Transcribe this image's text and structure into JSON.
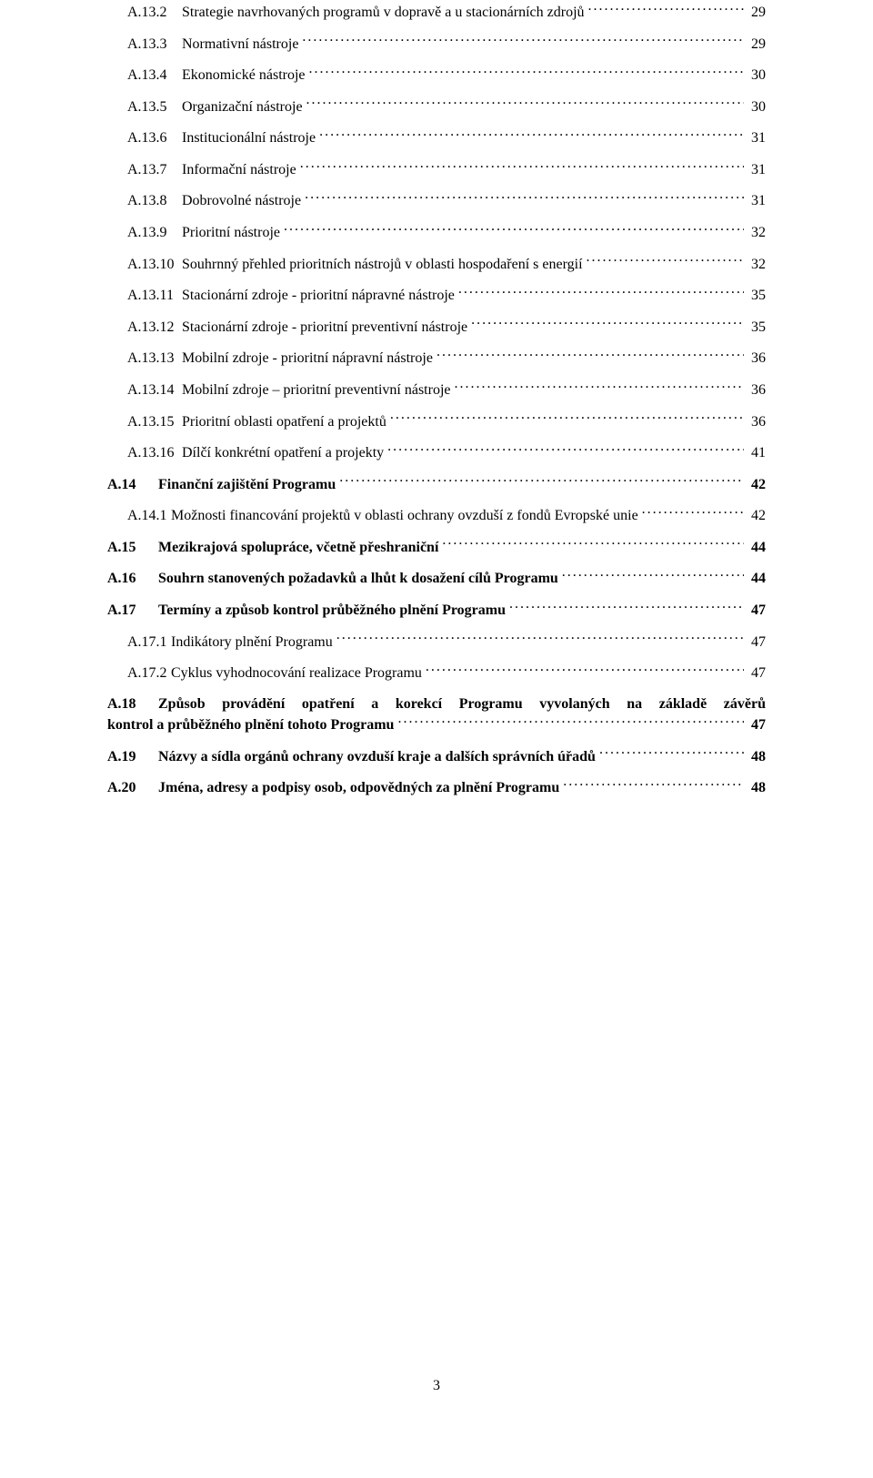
{
  "page_number": "3",
  "toc": [
    {
      "level": "sub2",
      "num": "A.13.2",
      "label": "Strategie navrhovaných programů v dopravě a u stacionárních zdrojů",
      "page": "29"
    },
    {
      "level": "sub2",
      "num": "A.13.3",
      "label": "Normativní nástroje",
      "page": "29"
    },
    {
      "level": "sub2",
      "num": "A.13.4",
      "label": "Ekonomické nástroje",
      "page": "30"
    },
    {
      "level": "sub2",
      "num": "A.13.5",
      "label": "Organizační nástroje",
      "page": "30"
    },
    {
      "level": "sub2",
      "num": "A.13.6",
      "label": "Institucionální nástroje",
      "page": "31"
    },
    {
      "level": "sub2",
      "num": "A.13.7",
      "label": "Informační nástroje",
      "page": "31"
    },
    {
      "level": "sub2",
      "num": "A.13.8",
      "label": "Dobrovolné nástroje",
      "page": "31"
    },
    {
      "level": "sub2",
      "num": "A.13.9",
      "label": "Prioritní nástroje",
      "page": "32"
    },
    {
      "level": "sub2",
      "num": "A.13.10",
      "label": "Souhrnný přehled prioritních nástrojů v oblasti hospodaření s energií",
      "page": "32"
    },
    {
      "level": "sub2",
      "num": "A.13.11",
      "label": "Stacionární zdroje - prioritní nápravné nástroje",
      "page": "35"
    },
    {
      "level": "sub2",
      "num": "A.13.12",
      "label": "Stacionární zdroje - prioritní preventivní nástroje",
      "page": "35"
    },
    {
      "level": "sub2",
      "num": "A.13.13",
      "label": "Mobilní zdroje - prioritní nápravní nástroje",
      "page": "36"
    },
    {
      "level": "sub2",
      "num": "A.13.14",
      "label": "Mobilní zdroje – prioritní preventivní nástroje",
      "page": "36"
    },
    {
      "level": "sub2",
      "num": "A.13.15",
      "label": "Prioritní oblasti opatření a projektů",
      "page": "36"
    },
    {
      "level": "sub2",
      "num": "A.13.16",
      "label": "Dílčí konkrétní opatření a projekty",
      "page": "41"
    },
    {
      "level": "main",
      "num": "A.14",
      "label": "Finanční zajištění Programu",
      "page": "42"
    },
    {
      "level": "sub",
      "num": "A.14.1",
      "label": "Možnosti financování projektů v oblasti ochrany ovzduší z fondů Evropské unie",
      "page": "42"
    },
    {
      "level": "main",
      "num": "A.15",
      "label": "Mezikrajová spolupráce, včetně přeshraniční",
      "page": "44"
    },
    {
      "level": "main",
      "num": "A.16",
      "label": "Souhrn stanovených požadavků a lhůt k dosažení cílů Programu",
      "page": "44"
    },
    {
      "level": "main",
      "num": "A.17",
      "label": "Termíny a způsob kontrol průběžného plnění Programu",
      "page": "47"
    },
    {
      "level": "sub",
      "num": "A.17.1",
      "label": "Indikátory plnění Programu",
      "page": "47"
    },
    {
      "level": "sub",
      "num": "A.17.2",
      "label": "Cyklus vyhodnocování realizace Programu",
      "page": "47"
    },
    {
      "level": "main-multi",
      "num": "A.18",
      "label_line1": "Způsob provádění opatření a korekcí Programu vyvolaných na základě závěrů",
      "label_line2": "kontrol a průběžného plnění tohoto Programu",
      "page": "47"
    },
    {
      "level": "main",
      "num": "A.19",
      "label": "Názvy a sídla orgánů ochrany ovzduší kraje a dalších správních úřadů",
      "page": "48"
    },
    {
      "level": "main",
      "num": "A.20",
      "label": "Jména, adresy a podpisy osob, odpovědných za plnění Programu",
      "page": "48"
    }
  ]
}
